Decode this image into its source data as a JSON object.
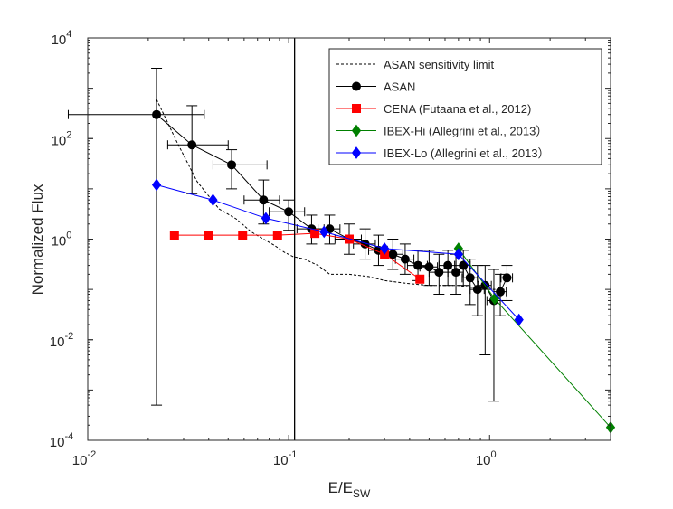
{
  "chart_data": {
    "type": "line",
    "xscale": "log",
    "yscale": "log",
    "xlim": [
      0.01,
      4
    ],
    "ylim": [
      0.0001,
      10000
    ],
    "xlabel_main": "E/E",
    "xlabel_sub": "SW",
    "ylabel": "Normalized Flux",
    "x_ticks": [
      {
        "value": 0.01,
        "base": "10",
        "exp": "-2"
      },
      {
        "value": 0.1,
        "base": "10",
        "exp": "-1"
      },
      {
        "value": 1,
        "base": "10",
        "exp": "0"
      }
    ],
    "y_ticks": [
      {
        "value": 0.0001,
        "base": "10",
        "exp": "-4"
      },
      {
        "value": 0.01,
        "base": "10",
        "exp": "-2"
      },
      {
        "value": 1,
        "base": "10",
        "exp": "0"
      },
      {
        "value": 100,
        "base": "10",
        "exp": "2"
      },
      {
        "value": 10000,
        "base": "10",
        "exp": "4"
      }
    ],
    "vertical_line_x": 0.107,
    "series": [
      {
        "name": "ASAN sensitivity limit",
        "color": "#000000",
        "style": "dashed",
        "marker": "none",
        "x": [
          0.022,
          0.028,
          0.035,
          0.045,
          0.055,
          0.065,
          0.075,
          0.085,
          0.095,
          0.105,
          0.12,
          0.14,
          0.16,
          0.2,
          0.25,
          0.3,
          0.4,
          0.5,
          0.6,
          0.7,
          0.8,
          0.9,
          1.0,
          1.1,
          1.2
        ],
        "y": [
          600,
          80,
          14,
          4,
          2.5,
          1.4,
          1.0,
          0.75,
          0.55,
          0.45,
          0.4,
          0.3,
          0.2,
          0.2,
          0.18,
          0.15,
          0.13,
          0.12,
          0.12,
          0.12,
          0.11,
          0.11,
          0.1,
          0.1,
          0.1
        ]
      },
      {
        "name": "ASAN",
        "color": "#000000",
        "style": "solid",
        "marker": "circle",
        "x": [
          0.022,
          0.033,
          0.052,
          0.075,
          0.1,
          0.13,
          0.16,
          0.2,
          0.24,
          0.28,
          0.33,
          0.38,
          0.44,
          0.5,
          0.56,
          0.62,
          0.68,
          0.74,
          0.8,
          0.87,
          0.95,
          1.05,
          1.13,
          1.22
        ],
        "y": [
          300,
          75,
          30,
          6,
          3.5,
          1.6,
          1.6,
          1.0,
          0.8,
          0.6,
          0.5,
          0.4,
          0.3,
          0.28,
          0.22,
          0.3,
          0.22,
          0.3,
          0.17,
          0.1,
          0.12,
          0.06,
          0.09,
          0.17
        ],
        "y_err_low": [
          0.0005,
          8,
          10,
          2,
          1.5,
          0.8,
          0.8,
          0.5,
          0.4,
          0.3,
          0.25,
          0.2,
          0.15,
          0.12,
          0.08,
          0.12,
          0.08,
          0.12,
          0.05,
          0.03,
          0.005,
          0.0006,
          0.03,
          0.06
        ],
        "y_err_high": [
          2500,
          450,
          60,
          15,
          6,
          3,
          3,
          2,
          1.6,
          1.2,
          1.0,
          0.8,
          0.6,
          0.6,
          0.5,
          0.6,
          0.5,
          0.6,
          0.4,
          0.3,
          0.3,
          0.25,
          0.2,
          0.3
        ],
        "x_err_low": [
          0.008,
          0.025,
          0.042,
          0.06,
          0.08,
          0.11,
          0.14,
          0.17,
          0.21,
          0.25,
          0.29,
          0.34,
          0.39,
          0.45,
          0.5,
          0.56,
          0.62,
          0.67,
          0.73,
          0.8,
          0.88,
          0.97,
          1.05,
          1.14
        ],
        "x_err_high": [
          0.038,
          0.05,
          0.078,
          0.09,
          0.12,
          0.15,
          0.18,
          0.23,
          0.27,
          0.31,
          0.37,
          0.42,
          0.49,
          0.55,
          0.62,
          0.68,
          0.74,
          0.8,
          0.87,
          0.94,
          1.02,
          1.13,
          1.21,
          1.3
        ]
      },
      {
        "name": "CENA (Futaana et al., 2012)",
        "color": "#ff0000",
        "style": "solid",
        "marker": "square",
        "x": [
          0.027,
          0.04,
          0.059,
          0.088,
          0.135,
          0.2,
          0.3,
          0.45
        ],
        "y": [
          1.2,
          1.2,
          1.2,
          1.2,
          1.3,
          1.0,
          0.5,
          0.16
        ]
      },
      {
        "name": "IBEX-Hi (Allegrini et al., 2013)",
        "color": "#008000",
        "style": "solid",
        "marker": "diamond",
        "x": [
          0.7,
          1.06,
          4.0
        ],
        "y": [
          0.65,
          0.065,
          0.00018
        ]
      },
      {
        "name": "IBEX-Lo (Allegrini et al., 2013)",
        "color": "#0000ff",
        "style": "solid",
        "marker": "diamond",
        "x": [
          0.022,
          0.042,
          0.077,
          0.15,
          0.3,
          0.7,
          1.4
        ],
        "y": [
          12,
          6,
          2.6,
          1.4,
          0.65,
          0.5,
          0.025
        ]
      }
    ],
    "legend": {
      "placement": "top-right",
      "entries": [
        {
          "label": "ASAN sensitivity limit",
          "series": 0
        },
        {
          "label": "ASAN",
          "series": 1
        },
        {
          "label": "CENA (Futaana et al., 2012)",
          "series": 2
        },
        {
          "label": "IBEX-Hi (Allegrini et al., 2013）",
          "series": 3
        },
        {
          "label": "IBEX-Lo (Allegrini et al., 2013）",
          "series": 4
        }
      ]
    }
  }
}
